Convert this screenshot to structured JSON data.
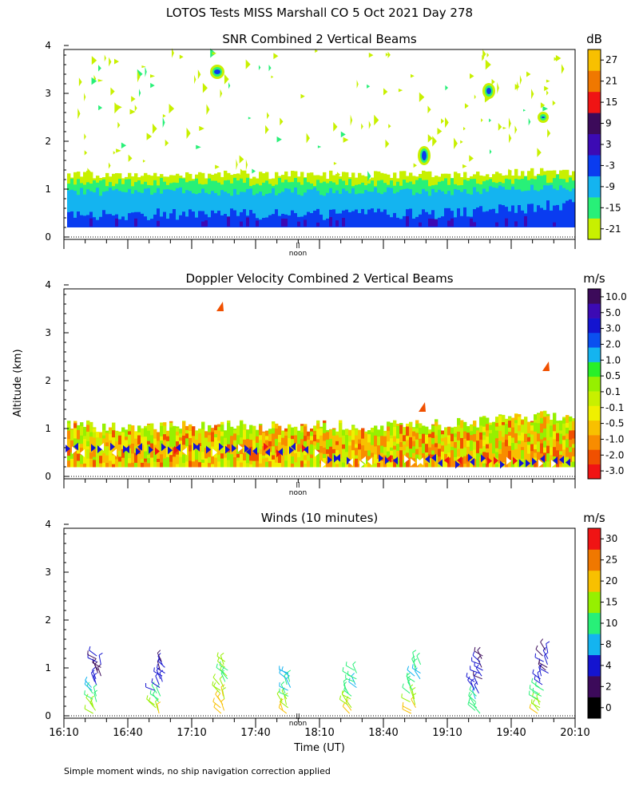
{
  "figure": {
    "title": "LOTOS Tests MISS Marshall CO   5 Oct 2021 Day 278",
    "y_axis_label": "Altitude (km)",
    "x_axis_label": "Time (UT)",
    "footnote": "Simple moment winds, no ship navigation correction applied",
    "noon_label": "noon",
    "noon_marker": "ll"
  },
  "colors": {
    "snr": [
      "#c8f000",
      "#28f078",
      "#14b4f0",
      "#0a3cf0",
      "#3c0ab4",
      "#3c0a5a",
      "#f01414",
      "#f07800",
      "#f8c000"
    ],
    "doppler": [
      "#f01414",
      "#f05000",
      "#f88c00",
      "#f8c000",
      "#f0f000",
      "#c8f000",
      "#96f000",
      "#28f028",
      "#14b4f0",
      "#0a50f0",
      "#1414d0",
      "#3c0ab4",
      "#3c0a5a"
    ],
    "winds": [
      "#000000",
      "#3c0a5a",
      "#1414d0",
      "#14b4f0",
      "#28f078",
      "#96f000",
      "#f8c000",
      "#f07800",
      "#f01414"
    ]
  },
  "chart_data": [
    {
      "type": "heatmap",
      "title": "SNR Combined 2 Vertical Beams",
      "units": "dB",
      "x_range_ut_hours": [
        16.1667,
        20.1667
      ],
      "x_ticks": [
        "16:10",
        "16:40",
        "17:10",
        "17:40",
        "18:10",
        "18:40",
        "19:10",
        "19:40",
        "20:10"
      ],
      "y_ticks": [
        "0",
        "1",
        "2",
        "3",
        "4"
      ],
      "ylim_km": [
        0,
        4
      ],
      "colorbar_labels": [
        "-21",
        "-15",
        "-9",
        "-3",
        "3",
        "9",
        "15",
        "21",
        "27"
      ],
      "layers_km": [
        {
          "level_db": -21,
          "top_km": 1.3
        },
        {
          "level_db": -15,
          "top_km": 1.15
        },
        {
          "level_db": -9,
          "top_km": 0.95
        },
        {
          "level_db": -3,
          "top_km": 0.5
        }
      ],
      "features": [
        "echo top rises to ~1.4 km after 19:00",
        "scattered weak returns up to 4 km",
        "small strong echoes near 3.4 km at ~17:25 and 3.0 km at ~19:35"
      ]
    },
    {
      "type": "heatmap",
      "title": "Doppler Velocity Combined 2 Vertical Beams",
      "units": "m/s",
      "x_range_ut_hours": [
        16.1667,
        20.1667
      ],
      "x_ticks": [
        "16:10",
        "16:40",
        "17:10",
        "17:40",
        "18:10",
        "18:40",
        "19:10",
        "19:40",
        "20:10"
      ],
      "y_ticks": [
        "0",
        "1",
        "2",
        "3",
        "4"
      ],
      "ylim_km": [
        0,
        4
      ],
      "colorbar_labels": [
        "-3.0",
        "-2.0",
        "-1.0",
        "-0.5",
        "-0.1",
        "0.1",
        "0.5",
        "1.0",
        "2.0",
        "3.0",
        "5.0",
        "10.0"
      ],
      "features": [
        "mostly -1 to +0.5 m/s below 1.3 km",
        "mixed sign speckle at 0.3-0.6 km",
        "isolated returns at ~3.5 km near 17:25"
      ]
    },
    {
      "type": "scatter",
      "title": "Winds (10 minutes)",
      "units": "m/s",
      "x_range_ut_hours": [
        16.1667,
        20.1667
      ],
      "x_ticks": [
        "16:10",
        "16:40",
        "17:10",
        "17:40",
        "18:10",
        "18:40",
        "19:10",
        "19:40",
        "20:10"
      ],
      "y_ticks": [
        "0",
        "1",
        "2",
        "3",
        "4"
      ],
      "ylim_km": [
        0,
        4
      ],
      "colorbar_labels": [
        "0",
        "2",
        "4",
        "8",
        "10",
        "15",
        "20",
        "25",
        "30"
      ],
      "profiles": [
        {
          "time_ut": "16:25",
          "top_km": 1.3,
          "low_speed_ms": 20,
          "high_speed_ms": 4
        },
        {
          "time_ut": "16:55",
          "top_km": 1.15,
          "low_speed_ms": 20,
          "high_speed_ms": 4
        },
        {
          "time_ut": "17:25",
          "top_km": 1.15,
          "low_speed_ms": 25,
          "high_speed_ms": 15
        },
        {
          "time_ut": "17:55",
          "top_km": 0.9,
          "low_speed_ms": 25,
          "high_speed_ms": 10
        },
        {
          "time_ut": "18:25",
          "top_km": 0.95,
          "low_speed_ms": 25,
          "high_speed_ms": 10
        },
        {
          "time_ut": "18:55",
          "top_km": 1.15,
          "low_speed_ms": 25,
          "high_speed_ms": 10
        },
        {
          "time_ut": "19:25",
          "top_km": 1.25,
          "low_speed_ms": 15,
          "high_speed_ms": 4
        },
        {
          "time_ut": "19:55",
          "top_km": 1.4,
          "low_speed_ms": 20,
          "high_speed_ms": 4
        }
      ]
    }
  ]
}
